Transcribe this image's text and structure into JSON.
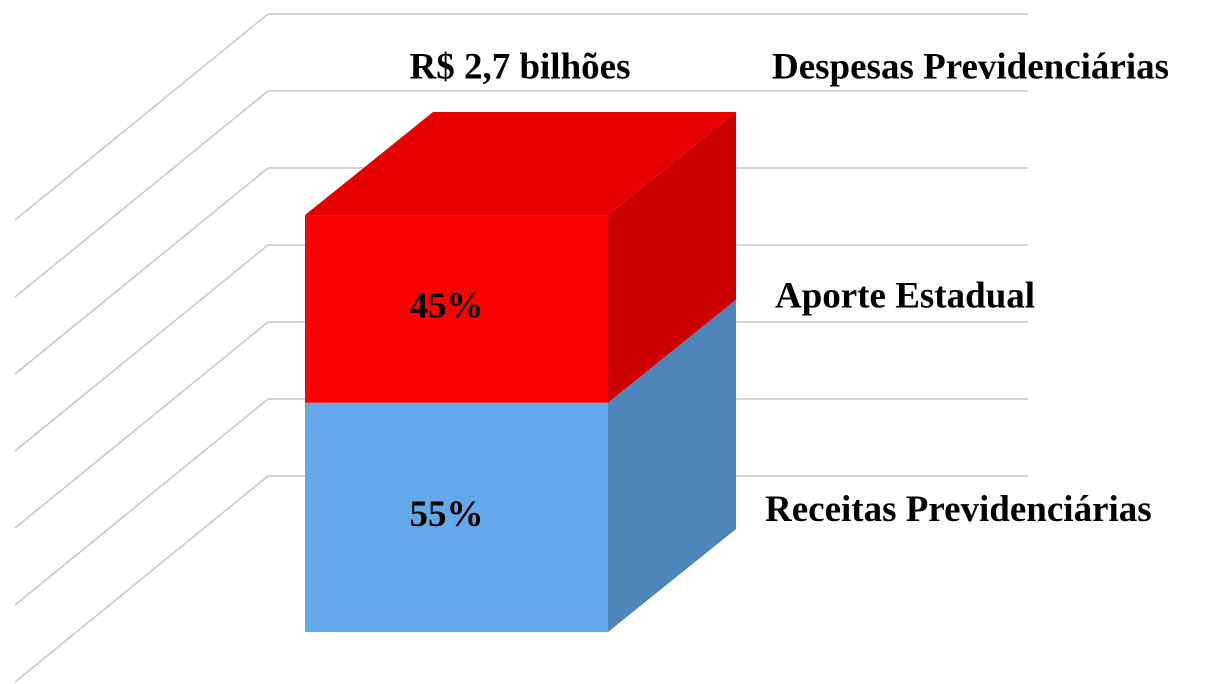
{
  "chart_data": {
    "type": "bar",
    "stacked": true,
    "three_d": true,
    "title": "Despesas Previdenciárias",
    "total_label": "R$ 2,7 bilhões",
    "categories": [
      null
    ],
    "series": [
      {
        "name": "Receitas Previdenciárias",
        "color": "#63a8e8",
        "values": [
          55
        ],
        "value_labels": [
          "55%"
        ]
      },
      {
        "name": "Aporte Estadual",
        "color": "#ff0000",
        "values": [
          45
        ],
        "value_labels": [
          "45%"
        ]
      }
    ],
    "ylim": [
      0,
      140
    ],
    "yticks": [
      0,
      20,
      40,
      60,
      80,
      100,
      120,
      140
    ],
    "grid": true
  }
}
